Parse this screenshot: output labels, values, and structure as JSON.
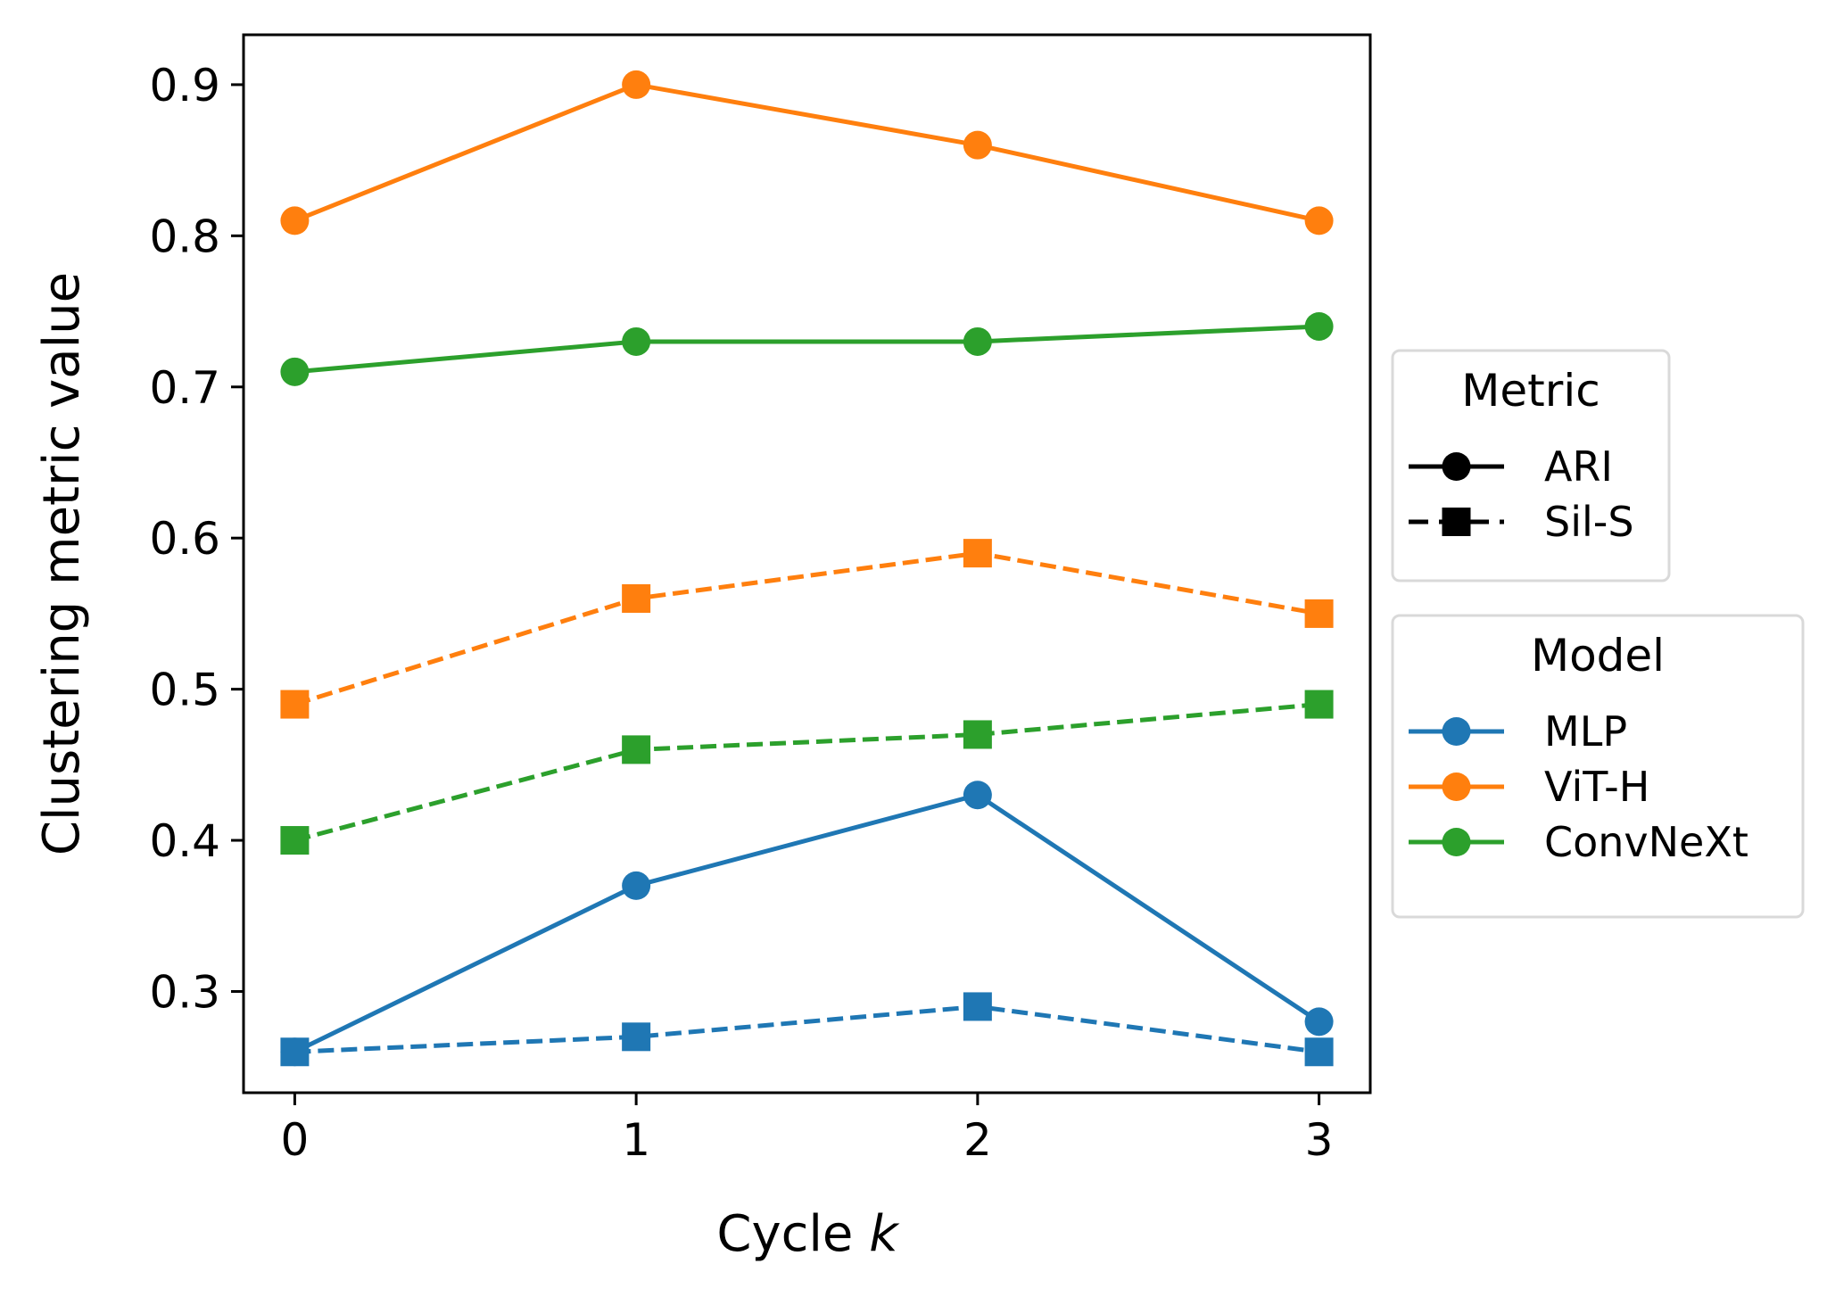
{
  "chart_data": {
    "type": "line",
    "title": "",
    "xlabel": "Cycle",
    "xlabel_italic_suffix": "k",
    "ylabel": "Clustering metric value",
    "x": [
      0,
      1,
      2,
      3
    ],
    "x_tick_labels": [
      "0",
      "1",
      "2",
      "3"
    ],
    "y_ticks": [
      0.3,
      0.4,
      0.5,
      0.6,
      0.7,
      0.8,
      0.9
    ],
    "y_tick_labels": [
      "0.3",
      "0.4",
      "0.5",
      "0.6",
      "0.7",
      "0.8",
      "0.9"
    ],
    "xlim": [
      -0.15,
      3.15
    ],
    "ylim": [
      0.233,
      0.933
    ],
    "grid": false,
    "series": [
      {
        "name": "MLP ARI",
        "model": "MLP",
        "metric": "ARI",
        "color": "#1f77b4",
        "linestyle": "solid",
        "marker": "circle",
        "values": [
          0.26,
          0.37,
          0.43,
          0.28
        ]
      },
      {
        "name": "MLP Sil-S",
        "model": "MLP",
        "metric": "Sil-S",
        "color": "#1f77b4",
        "linestyle": "dashed",
        "marker": "square",
        "values": [
          0.26,
          0.27,
          0.29,
          0.26
        ]
      },
      {
        "name": "ViT-H ARI",
        "model": "ViT-H",
        "metric": "ARI",
        "color": "#ff7f0e",
        "linestyle": "solid",
        "marker": "circle",
        "values": [
          0.81,
          0.9,
          0.86,
          0.81
        ]
      },
      {
        "name": "ViT-H Sil-S",
        "model": "ViT-H",
        "metric": "Sil-S",
        "color": "#ff7f0e",
        "linestyle": "dashed",
        "marker": "square",
        "values": [
          0.49,
          0.56,
          0.59,
          0.55
        ]
      },
      {
        "name": "ConvNeXt ARI",
        "model": "ConvNeXt",
        "metric": "ARI",
        "color": "#2ca02c",
        "linestyle": "solid",
        "marker": "circle",
        "values": [
          0.71,
          0.73,
          0.73,
          0.74
        ]
      },
      {
        "name": "ConvNeXt Sil-S",
        "model": "ConvNeXt",
        "metric": "Sil-S",
        "color": "#2ca02c",
        "linestyle": "dashed",
        "marker": "square",
        "values": [
          0.4,
          0.46,
          0.47,
          0.49
        ]
      }
    ],
    "legends": [
      {
        "title": "Metric",
        "placement": "right-center-upper",
        "entries": [
          {
            "label": "ARI",
            "color": "#000000",
            "linestyle": "solid",
            "marker": "circle"
          },
          {
            "label": "Sil-S",
            "color": "#000000",
            "linestyle": "dashed",
            "marker": "square"
          }
        ]
      },
      {
        "title": "Model",
        "placement": "right-center-lower",
        "entries": [
          {
            "label": "MLP",
            "color": "#1f77b4",
            "linestyle": "solid",
            "marker": "circle"
          },
          {
            "label": "ViT-H",
            "color": "#ff7f0e",
            "linestyle": "solid",
            "marker": "circle"
          },
          {
            "label": "ConvNeXt",
            "color": "#2ca02c",
            "linestyle": "solid",
            "marker": "circle"
          }
        ]
      }
    ]
  }
}
